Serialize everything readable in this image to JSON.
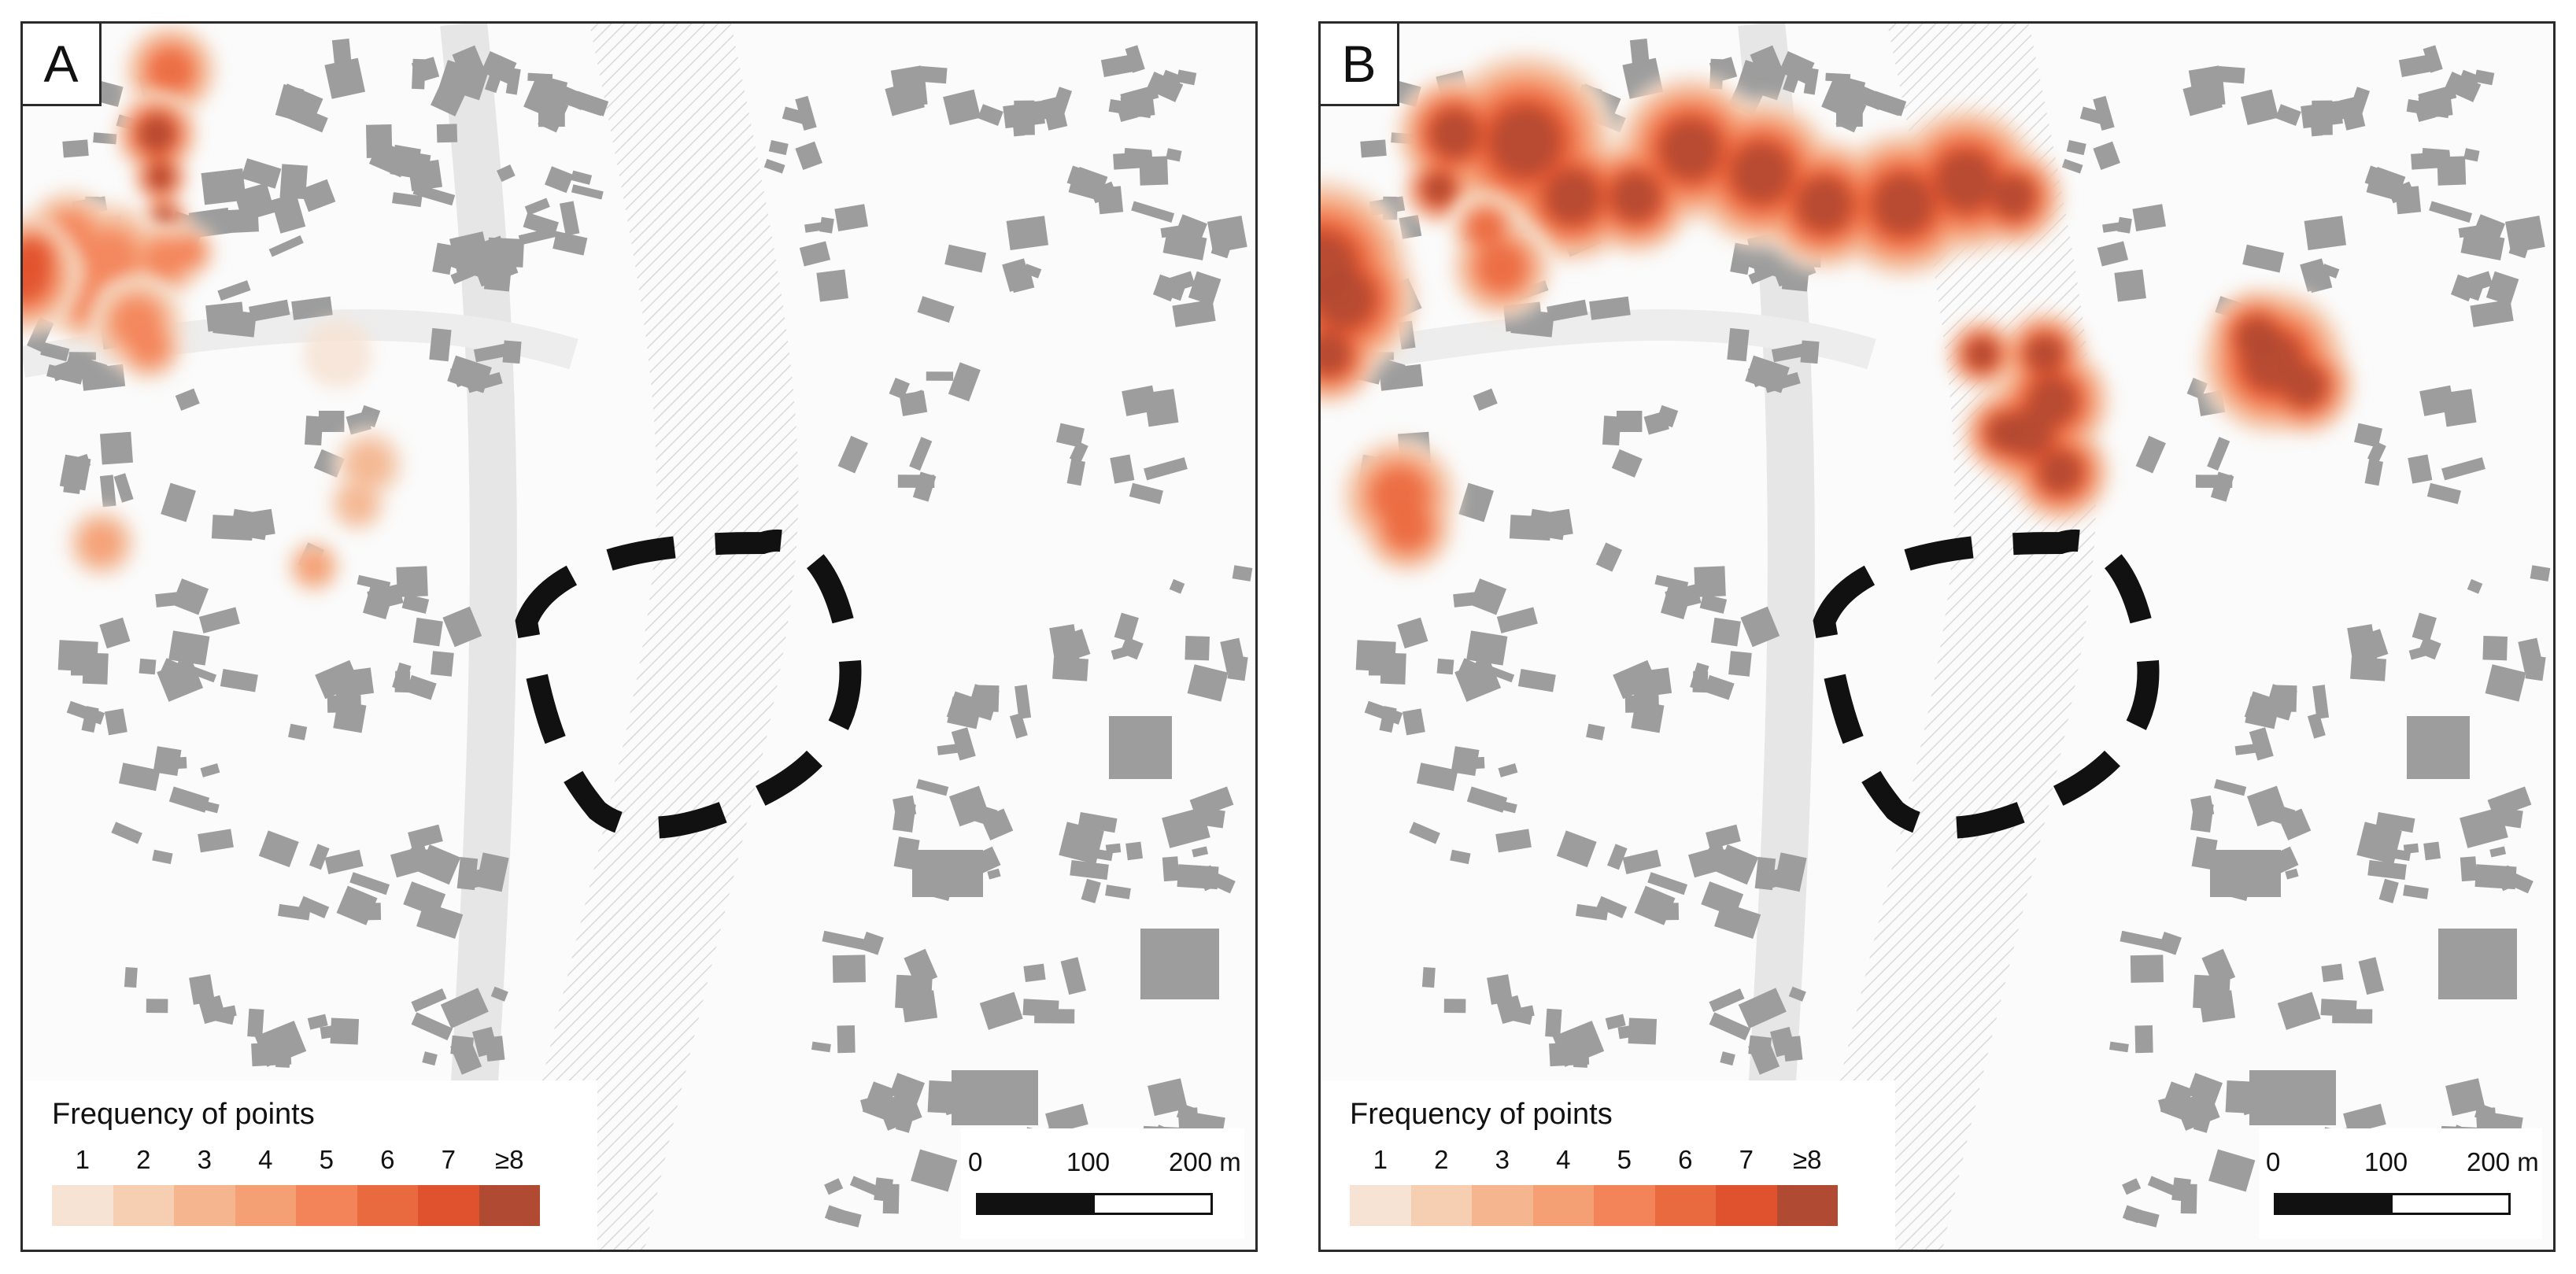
{
  "panels": [
    {
      "id": "A",
      "label": "A",
      "hotspots": [
        {
          "name": "hotspot-north-top",
          "level": 6
        },
        {
          "name": "hotspot-north",
          "level": 8
        },
        {
          "name": "hotspot-northwest-cluster",
          "level": 5
        },
        {
          "name": "hotspot-west-edge",
          "level": 7
        },
        {
          "name": "hotspot-center-west",
          "level": 5
        },
        {
          "name": "hotspot-central",
          "level": 1
        },
        {
          "name": "hotspot-south",
          "level": 3
        },
        {
          "name": "hotspot-southwest",
          "level": 4
        }
      ]
    },
    {
      "id": "B",
      "label": "B",
      "hotspots": [
        {
          "name": "hotspot-north-arc",
          "level": 8
        },
        {
          "name": "hotspot-west-edge",
          "level": 8
        },
        {
          "name": "hotspot-dashed-area",
          "level": 8
        },
        {
          "name": "hotspot-center-cluster",
          "level": 8
        },
        {
          "name": "hotspot-southwest",
          "level": 6
        }
      ]
    }
  ],
  "legend": {
    "title": "Frequency of points",
    "levels": [
      "1",
      "2",
      "3",
      "4",
      "5",
      "6",
      "7",
      "≥8"
    ],
    "colors": [
      "#f7e3d3",
      "#f6cfb3",
      "#f5b58f",
      "#f49f74",
      "#f3845a",
      "#ea6a3f",
      "#e0522e",
      "#b04a33"
    ]
  },
  "scale": {
    "labels": [
      "0",
      "100",
      "200 m"
    ]
  },
  "colors": {
    "building": "#9d9d9d",
    "street_background": "#fbfbfb",
    "hatch": "#d9d9d9",
    "study_area_outline": "#111111"
  }
}
